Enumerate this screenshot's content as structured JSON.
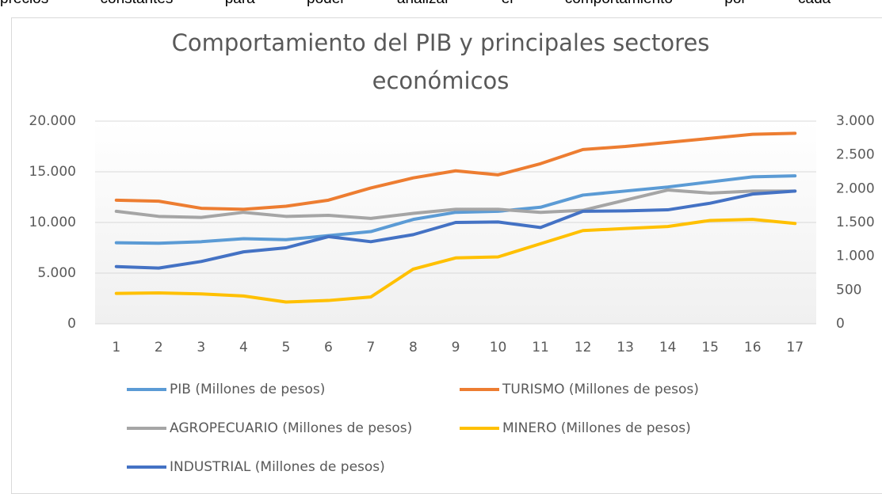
{
  "document_text": "precios constantes para poder analizar el comportamiento por cada va",
  "chart_data": {
    "type": "line",
    "title": "Comportamiento del PIB y principales sectores económicos",
    "categories": [
      "1",
      "2",
      "3",
      "4",
      "5",
      "6",
      "7",
      "8",
      "9",
      "10",
      "11",
      "12",
      "13",
      "14",
      "15",
      "16",
      "17"
    ],
    "ylim": [
      0,
      20000
    ],
    "yticks": [
      0,
      {
        "value": 5000,
        "label": "5.000"
      },
      {
        "value": 10000,
        "label": "10.000"
      },
      {
        "value": 15000,
        "label": "15.000"
      },
      {
        "value": 20000,
        "label": "20.000"
      }
    ],
    "y2lim": [
      0,
      3000
    ],
    "y2ticks": [
      0,
      500,
      {
        "value": 1000,
        "label": "1.000"
      },
      {
        "value": 1500,
        "label": "1.500"
      },
      {
        "value": 2000,
        "label": "2.000"
      },
      {
        "value": 2500,
        "label": "2.500"
      },
      {
        "value": 3000,
        "label": "3.000"
      }
    ],
    "grid": true,
    "legend": "bottom",
    "series": [
      {
        "name": "PIB (Millones de pesos)",
        "color": "#5b9bd5",
        "values": [
          8000,
          7950,
          8100,
          8400,
          8300,
          8700,
          9100,
          10300,
          11000,
          11100,
          11500,
          12700,
          13100,
          13500,
          14000,
          14500,
          14600
        ]
      },
      {
        "name": "TURISMO (Millones de pesos)",
        "color": "#ed7d31",
        "axis": "y2",
        "values": [
          1830,
          1815,
          1710,
          1695,
          1740,
          1830,
          2010,
          2160,
          2265,
          2205,
          2370,
          2580,
          2625,
          2685,
          2745,
          2805,
          2820
        ]
      },
      {
        "name": "AGROPECUARIO (Millones de pesos)",
        "color": "#a5a5a5",
        "axis": "y2",
        "values": [
          1665,
          1590,
          1575,
          1650,
          1590,
          1605,
          1560,
          1635,
          1695,
          1695,
          1650,
          1680,
          1830,
          1980,
          1935,
          1965,
          1965
        ]
      },
      {
        "name": "MINERO (Millones de pesos)",
        "color": "#ffc000",
        "axis": "y2",
        "values": [
          450,
          457,
          442,
          412,
          322,
          345,
          397,
          810,
          975,
          990,
          1185,
          1380,
          1410,
          1440,
          1530,
          1545,
          1485
        ]
      },
      {
        "name": "INDUSTRIAL (Millones de pesos)",
        "color": "#4472c4",
        "axis": "y2",
        "values": [
          847,
          825,
          922,
          1065,
          1125,
          1290,
          1215,
          1320,
          1500,
          1507,
          1425,
          1665,
          1672,
          1687,
          1785,
          1920,
          1965
        ]
      }
    ]
  }
}
